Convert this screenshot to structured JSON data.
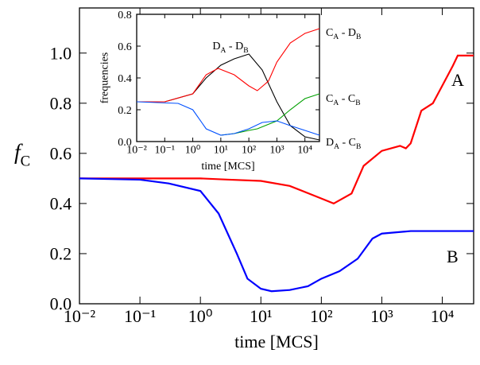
{
  "chart_data": [
    {
      "type": "line",
      "x_label": "time [MCS]",
      "y_label": [
        "f",
        "C"
      ],
      "xscale": "log",
      "xlim": [
        0.01,
        33000
      ],
      "ylim": [
        0,
        1.18
      ],
      "xticks": [
        {
          "value": 0.01,
          "label": "10⁻²"
        },
        {
          "value": 0.1,
          "label": "10⁻¹"
        },
        {
          "value": 1,
          "label": "10⁰"
        },
        {
          "value": 10,
          "label": "10¹"
        },
        {
          "value": 100,
          "label": "10²"
        },
        {
          "value": 1000,
          "label": "10³"
        },
        {
          "value": 10000,
          "label": "10⁴"
        }
      ],
      "yticks": [
        {
          "value": 0,
          "label": "0.0"
        },
        0.2,
        0.4,
        0.6,
        0.8,
        {
          "value": 1,
          "label": "1.0"
        }
      ],
      "series": [
        {
          "name": "A",
          "color": "#ff0000",
          "x": [
            0.01,
            0.1,
            1,
            3,
            10,
            30,
            100,
            160,
            316,
            500,
            1000,
            2000,
            2500,
            3000,
            4500,
            7000,
            10000,
            15000,
            18000,
            33000
          ],
          "values": [
            0.5,
            0.5,
            0.5,
            0.495,
            0.49,
            0.47,
            0.42,
            0.4,
            0.44,
            0.55,
            0.61,
            0.63,
            0.62,
            0.64,
            0.77,
            0.8,
            0.87,
            0.95,
            0.99,
            0.99
          ]
        },
        {
          "name": "B",
          "color": "#0000ff",
          "x": [
            0.01,
            0.1,
            0.3,
            1,
            2,
            4,
            6,
            10,
            15,
            30,
            60,
            100,
            200,
            400,
            700,
            1000,
            3000,
            10000,
            33000
          ],
          "values": [
            0.5,
            0.495,
            0.48,
            0.45,
            0.36,
            0.2,
            0.1,
            0.06,
            0.05,
            0.055,
            0.07,
            0.1,
            0.13,
            0.18,
            0.26,
            0.28,
            0.29,
            0.29,
            0.29
          ]
        }
      ]
    },
    {
      "type": "line",
      "x_label": "time [MCS]",
      "y_label": "frequencies",
      "xscale": "log",
      "xlim": [
        0.01,
        33000
      ],
      "ylim": [
        0,
        0.8
      ],
      "xticks": [
        {
          "value": 0.01,
          "label": "10⁻²"
        },
        {
          "value": 0.1,
          "label": "10⁻¹"
        },
        {
          "value": 1,
          "label": "10⁰"
        },
        {
          "value": 10,
          "label": "10¹"
        },
        {
          "value": 100,
          "label": "10²"
        },
        {
          "value": 1000,
          "label": "10³"
        },
        {
          "value": 10000,
          "label": "10⁴"
        }
      ],
      "yticks": [
        {
          "value": 0,
          "label": "0.0"
        },
        0.2,
        0.4,
        0.6,
        0.8
      ],
      "series": [
        {
          "label": [
            "D",
            "A",
            " - D",
            "B"
          ],
          "color": "#000000",
          "x": [
            0.01,
            0.1,
            1,
            3,
            10,
            30,
            100,
            300,
            1000,
            3000,
            10000,
            33000
          ],
          "values": [
            0.25,
            0.25,
            0.3,
            0.4,
            0.48,
            0.52,
            0.55,
            0.45,
            0.25,
            0.1,
            0.03,
            0.01
          ]
        },
        {
          "label": [
            "C",
            "A",
            " - D",
            "B"
          ],
          "color": "#ff0000",
          "x": [
            0.01,
            0.1,
            1,
            3,
            8,
            30,
            100,
            200,
            500,
            1000,
            3000,
            10000,
            33000
          ],
          "values": [
            0.25,
            0.25,
            0.3,
            0.42,
            0.46,
            0.42,
            0.35,
            0.32,
            0.38,
            0.5,
            0.62,
            0.68,
            0.71
          ]
        },
        {
          "label": [
            "C",
            "A",
            " - C",
            "B"
          ],
          "color": "#00a000",
          "x": [
            10,
            30,
            100,
            200,
            1000,
            3000,
            10000,
            33000
          ],
          "values": [
            0.04,
            0.05,
            0.07,
            0.08,
            0.13,
            0.2,
            0.27,
            0.3
          ]
        },
        {
          "label": [
            "D",
            "A",
            " - C",
            "B"
          ],
          "color": "#0050ff",
          "x": [
            0.01,
            0.3,
            1,
            3,
            10,
            30,
            100,
            300,
            1000,
            3000,
            10000,
            33000
          ],
          "values": [
            0.25,
            0.24,
            0.2,
            0.08,
            0.04,
            0.05,
            0.08,
            0.12,
            0.13,
            0.1,
            0.07,
            0.04
          ]
        }
      ]
    }
  ]
}
